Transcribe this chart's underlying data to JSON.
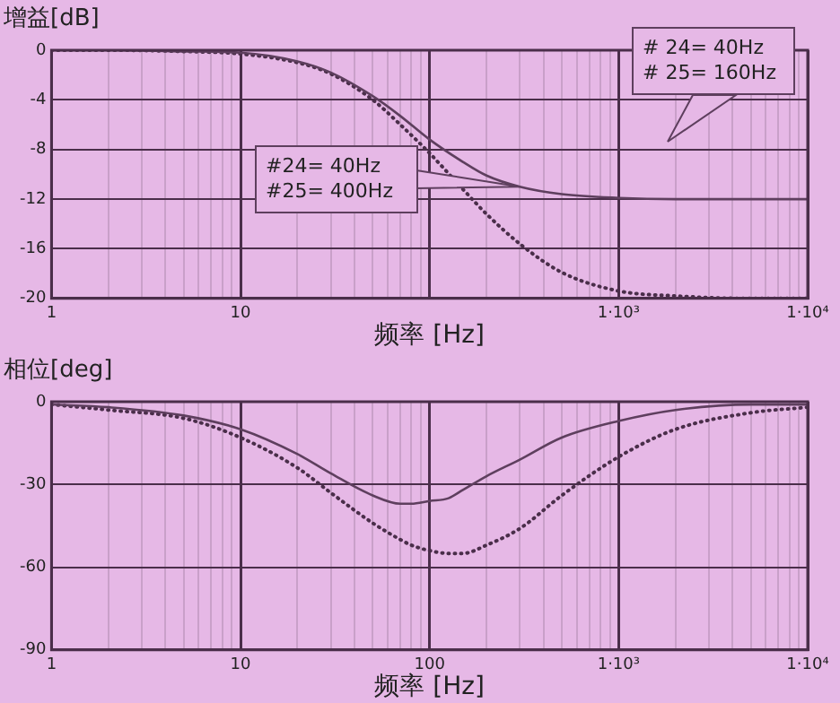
{
  "chart_data": [
    {
      "type": "line",
      "ylabel": "增益[dB]",
      "xlabel": "频率 [Hz]",
      "log": "x",
      "grid": true,
      "marker": "none",
      "xlim": [
        1,
        10000
      ],
      "ylim": [
        -20,
        0
      ],
      "xticks": [
        1,
        {
          "value": 2,
          "label": null
        },
        {
          "value": 3,
          "label": null
        },
        {
          "value": 4,
          "label": null
        },
        {
          "value": 5,
          "label": null
        },
        {
          "value": 6,
          "label": null
        },
        {
          "value": 7,
          "label": null
        },
        {
          "value": 8,
          "label": null
        },
        {
          "value": 9,
          "label": null
        },
        10,
        {
          "value": 20,
          "label": null
        },
        {
          "value": 30,
          "label": null
        },
        {
          "value": 40,
          "label": null
        },
        {
          "value": 50,
          "label": null
        },
        {
          "value": 60,
          "label": null
        },
        {
          "value": 70,
          "label": null
        },
        {
          "value": 80,
          "label": null
        },
        {
          "value": 90,
          "label": null
        },
        {
          "value": 100,
          "label": null
        },
        {
          "value": 200,
          "label": null
        },
        {
          "value": 300,
          "label": null
        },
        {
          "value": 400,
          "label": null
        },
        {
          "value": 500,
          "label": null
        },
        {
          "value": 600,
          "label": null
        },
        {
          "value": 700,
          "label": null
        },
        {
          "value": 800,
          "label": null
        },
        {
          "value": 900,
          "label": null
        },
        {
          "value": 1000,
          "label": "1·10³"
        },
        {
          "value": 2000,
          "label": null
        },
        {
          "value": 3000,
          "label": null
        },
        {
          "value": 4000,
          "label": null
        },
        {
          "value": 5000,
          "label": null
        },
        {
          "value": 6000,
          "label": null
        },
        {
          "value": 7000,
          "label": null
        },
        {
          "value": 8000,
          "label": null
        },
        {
          "value": 9000,
          "label": null
        },
        {
          "value": 10000,
          "label": "1·10⁴"
        }
      ],
      "yticks": [
        0,
        -4,
        -8,
        -12,
        -16,
        -20
      ],
      "x": [
        1,
        2,
        5,
        10,
        20,
        30,
        50,
        70,
        100,
        150,
        200,
        300,
        500,
        1000,
        2000,
        5000,
        10000
      ],
      "series": [
        {
          "color": "#5e3f5e",
          "line_style": "solid",
          "values": [
            0,
            0,
            -0.1,
            -0.2,
            -0.9,
            -1.8,
            -3.7,
            -5.3,
            -7.2,
            -9.0,
            -10.1,
            -11.0,
            -11.6,
            -11.9,
            -12.0,
            -12.0,
            -12.0
          ]
        },
        {
          "color": "#4a2e4a",
          "line_style": "dotted",
          "values": [
            0,
            0,
            -0.1,
            -0.3,
            -1.0,
            -1.9,
            -4.0,
            -6.0,
            -8.3,
            -11.2,
            -13.2,
            -15.6,
            -17.9,
            -19.4,
            -19.8,
            -20.0,
            -20.0
          ]
        }
      ],
      "annotations": [
        "# 24= 40Hz\n# 25= 160Hz",
        {
          "text": "#24= 40Hz\n#25= 400Hz",
          "x": 300,
          "y": -11.0
        }
      ]
    },
    {
      "type": "line",
      "ylabel": "相位[deg]",
      "xlabel": "频率 [Hz]",
      "log": "x",
      "grid": true,
      "marker": "none",
      "xlim": [
        1,
        10000
      ],
      "ylim": [
        -90,
        0
      ],
      "xticks": [
        1,
        {
          "value": 2,
          "label": null
        },
        {
          "value": 3,
          "label": null
        },
        {
          "value": 4,
          "label": null
        },
        {
          "value": 5,
          "label": null
        },
        {
          "value": 6,
          "label": null
        },
        {
          "value": 7,
          "label": null
        },
        {
          "value": 8,
          "label": null
        },
        {
          "value": 9,
          "label": null
        },
        10,
        {
          "value": 20,
          "label": null
        },
        {
          "value": 30,
          "label": null
        },
        {
          "value": 40,
          "label": null
        },
        {
          "value": 50,
          "label": null
        },
        {
          "value": 60,
          "label": null
        },
        {
          "value": 70,
          "label": null
        },
        {
          "value": 80,
          "label": null
        },
        {
          "value": 90,
          "label": null
        },
        100,
        {
          "value": 200,
          "label": null
        },
        {
          "value": 300,
          "label": null
        },
        {
          "value": 400,
          "label": null
        },
        {
          "value": 500,
          "label": null
        },
        {
          "value": 600,
          "label": null
        },
        {
          "value": 700,
          "label": null
        },
        {
          "value": 800,
          "label": null
        },
        {
          "value": 900,
          "label": null
        },
        {
          "value": 1000,
          "label": "1·10³"
        },
        {
          "value": 2000,
          "label": null
        },
        {
          "value": 3000,
          "label": null
        },
        {
          "value": 4000,
          "label": null
        },
        {
          "value": 5000,
          "label": null
        },
        {
          "value": 6000,
          "label": null
        },
        {
          "value": 7000,
          "label": null
        },
        {
          "value": 8000,
          "label": null
        },
        {
          "value": 9000,
          "label": null
        },
        {
          "value": 10000,
          "label": "1·10⁴"
        }
      ],
      "yticks": [
        0,
        -30,
        -60,
        -90
      ],
      "x": [
        1,
        2,
        5,
        10,
        20,
        30,
        50,
        70,
        80,
        100,
        126,
        150,
        200,
        300,
        500,
        1000,
        2000,
        5000,
        10000
      ],
      "series": [
        {
          "color": "#5e3f5e",
          "line_style": "solid",
          "values": [
            -1,
            -2,
            -5,
            -10,
            -19,
            -26,
            -34,
            -37,
            -37,
            -36,
            -35,
            -32,
            -27,
            -21,
            -13,
            -7,
            -3,
            -1,
            -1
          ]
        },
        {
          "color": "#4a2e4a",
          "line_style": "dotted",
          "values": [
            -1,
            -3,
            -6,
            -13,
            -24,
            -33,
            -44,
            -50,
            -52,
            -54,
            -55,
            -55,
            -52,
            -46,
            -34,
            -20,
            -10,
            -4,
            -2
          ]
        }
      ]
    }
  ]
}
